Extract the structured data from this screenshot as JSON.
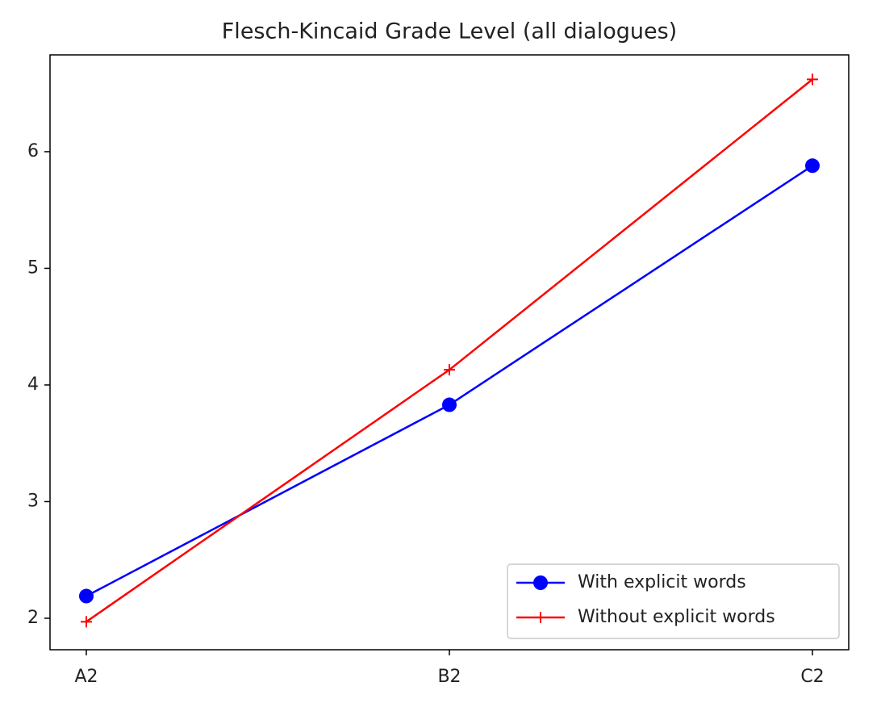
{
  "chart_data": {
    "type": "line",
    "title": "Flesch-Kincaid Grade Level (all dialogues)",
    "categories": [
      "A2",
      "B2",
      "C2"
    ],
    "series": [
      {
        "name": "With explicit words",
        "color": "#0000ff",
        "marker": "circle",
        "values": [
          2.19,
          3.83,
          5.88
        ]
      },
      {
        "name": "Without explicit words",
        "color": "#ff0000",
        "marker": "plus",
        "values": [
          1.97,
          4.13,
          6.62
        ]
      }
    ],
    "ylim": [
      1.73,
      6.83
    ],
    "yticks": [
      2,
      3,
      4,
      5,
      6
    ],
    "grid": false,
    "legend": "lower right"
  }
}
